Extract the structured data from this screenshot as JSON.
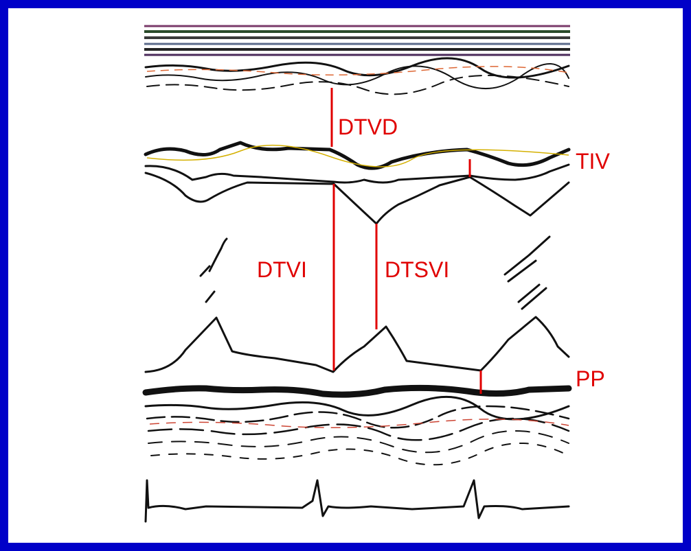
{
  "labels": {
    "dtvd": "DTVD",
    "tiv": "TIV",
    "dtvi": "DTVI",
    "dtsvi": "DTSVI",
    "pp": "PP"
  }
}
